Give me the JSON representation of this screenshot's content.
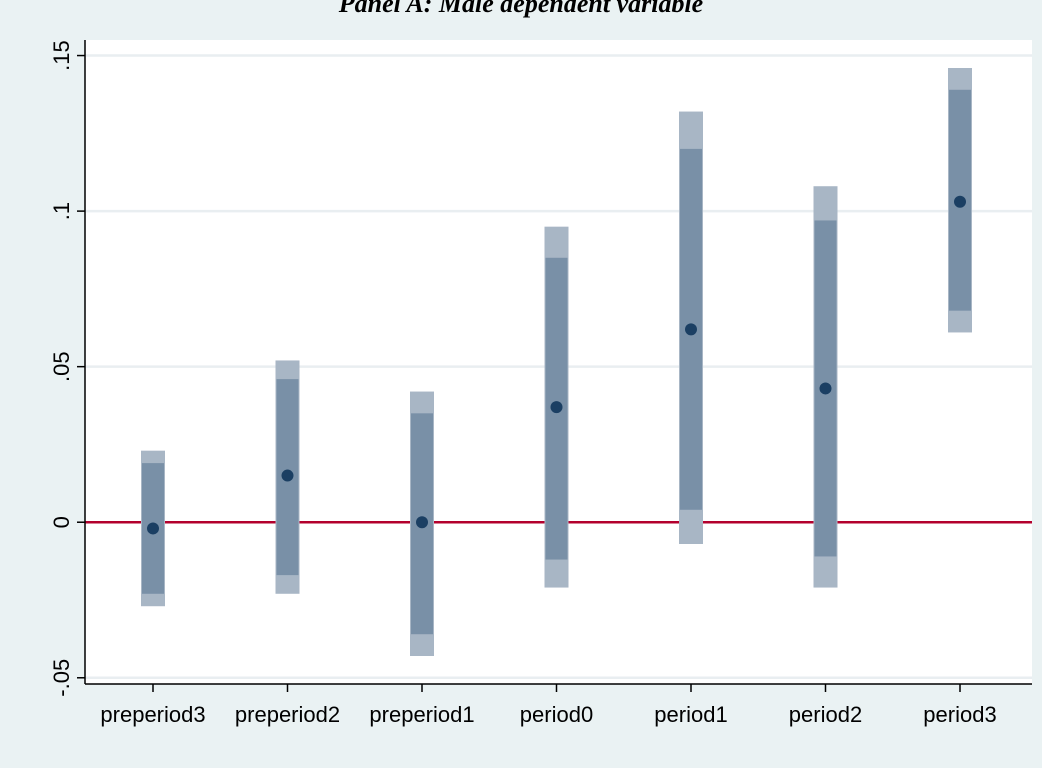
{
  "chart_data": {
    "type": "coefficient_plot",
    "title": "Panel A: Male dependent variable",
    "xlabel": "",
    "ylabel": "",
    "categories": [
      "preperiod3",
      "preperiod2",
      "preperiod1",
      "period0",
      "period1",
      "period2",
      "period3"
    ],
    "ylim": [
      -0.052,
      0.155
    ],
    "yticks": [
      -0.05,
      0,
      0.05,
      0.1,
      0.15
    ],
    "ytick_labels": [
      "-.05",
      "0",
      ".05",
      ".1",
      ".15"
    ],
    "grid": true,
    "reference_line": {
      "y": 0,
      "color": "#b3002d"
    },
    "series": [
      {
        "estimates": [
          -0.002,
          0.015,
          0.0,
          0.037,
          0.062,
          0.043,
          0.103
        ],
        "ci_inner": [
          [
            -0.023,
            0.019
          ],
          [
            -0.017,
            0.046
          ],
          [
            -0.036,
            0.035
          ],
          [
            -0.012,
            0.085
          ],
          [
            0.004,
            0.12
          ],
          [
            -0.011,
            0.097
          ],
          [
            0.068,
            0.139
          ]
        ],
        "ci_outer": [
          [
            -0.027,
            0.023
          ],
          [
            -0.023,
            0.052
          ],
          [
            -0.043,
            0.042
          ],
          [
            -0.021,
            0.095
          ],
          [
            -0.007,
            0.132
          ],
          [
            -0.021,
            0.108
          ],
          [
            0.061,
            0.146
          ]
        ]
      }
    ],
    "colors": {
      "outer_ci": "#a8b6c5",
      "inner_ci": "#7990a7",
      "point": "#1b3f63",
      "grid": "#e9eef1",
      "background": "#eaf2f3",
      "plot_region": "#ffffff"
    }
  }
}
